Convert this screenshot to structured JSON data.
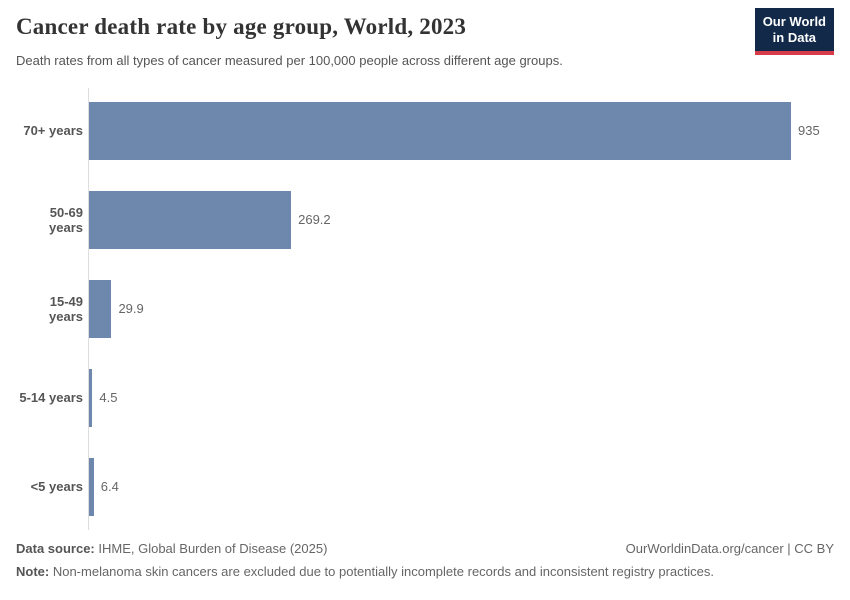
{
  "header": {
    "title": "Cancer death rate by age group, World, 2023",
    "subtitle": "Death rates from all types of cancer measured per 100,000 people across different age groups.",
    "logo": {
      "line1": "Our World",
      "line2": "in Data",
      "bg_color": "#12294a",
      "accent_color": "#d73c4a"
    }
  },
  "chart_data": {
    "type": "bar",
    "orientation": "horizontal",
    "title": "Cancer death rate by age group, World, 2023",
    "xlabel": "",
    "ylabel": "",
    "categories": [
      "70+ years",
      "50-69 years",
      "15-49 years",
      "5-14 years",
      "<5 years"
    ],
    "values": [
      935,
      269.2,
      29.9,
      4.5,
      6.4
    ],
    "value_labels": [
      "935",
      "269.2",
      "29.9",
      "4.5",
      "6.4"
    ],
    "xlim": [
      0,
      935
    ],
    "grid": false,
    "legend": false,
    "bar_color": "#6d87ad",
    "axis_color": "#dddddd"
  },
  "footer": {
    "data_source_label": "Data source:",
    "data_source_text": " IHME, Global Burden of Disease (2025)",
    "attribution": "OurWorldinData.org/cancer | CC BY",
    "note_label": "Note:",
    "note_text": " Non-melanoma skin cancers are excluded due to potentially incomplete records and inconsistent registry practices."
  }
}
